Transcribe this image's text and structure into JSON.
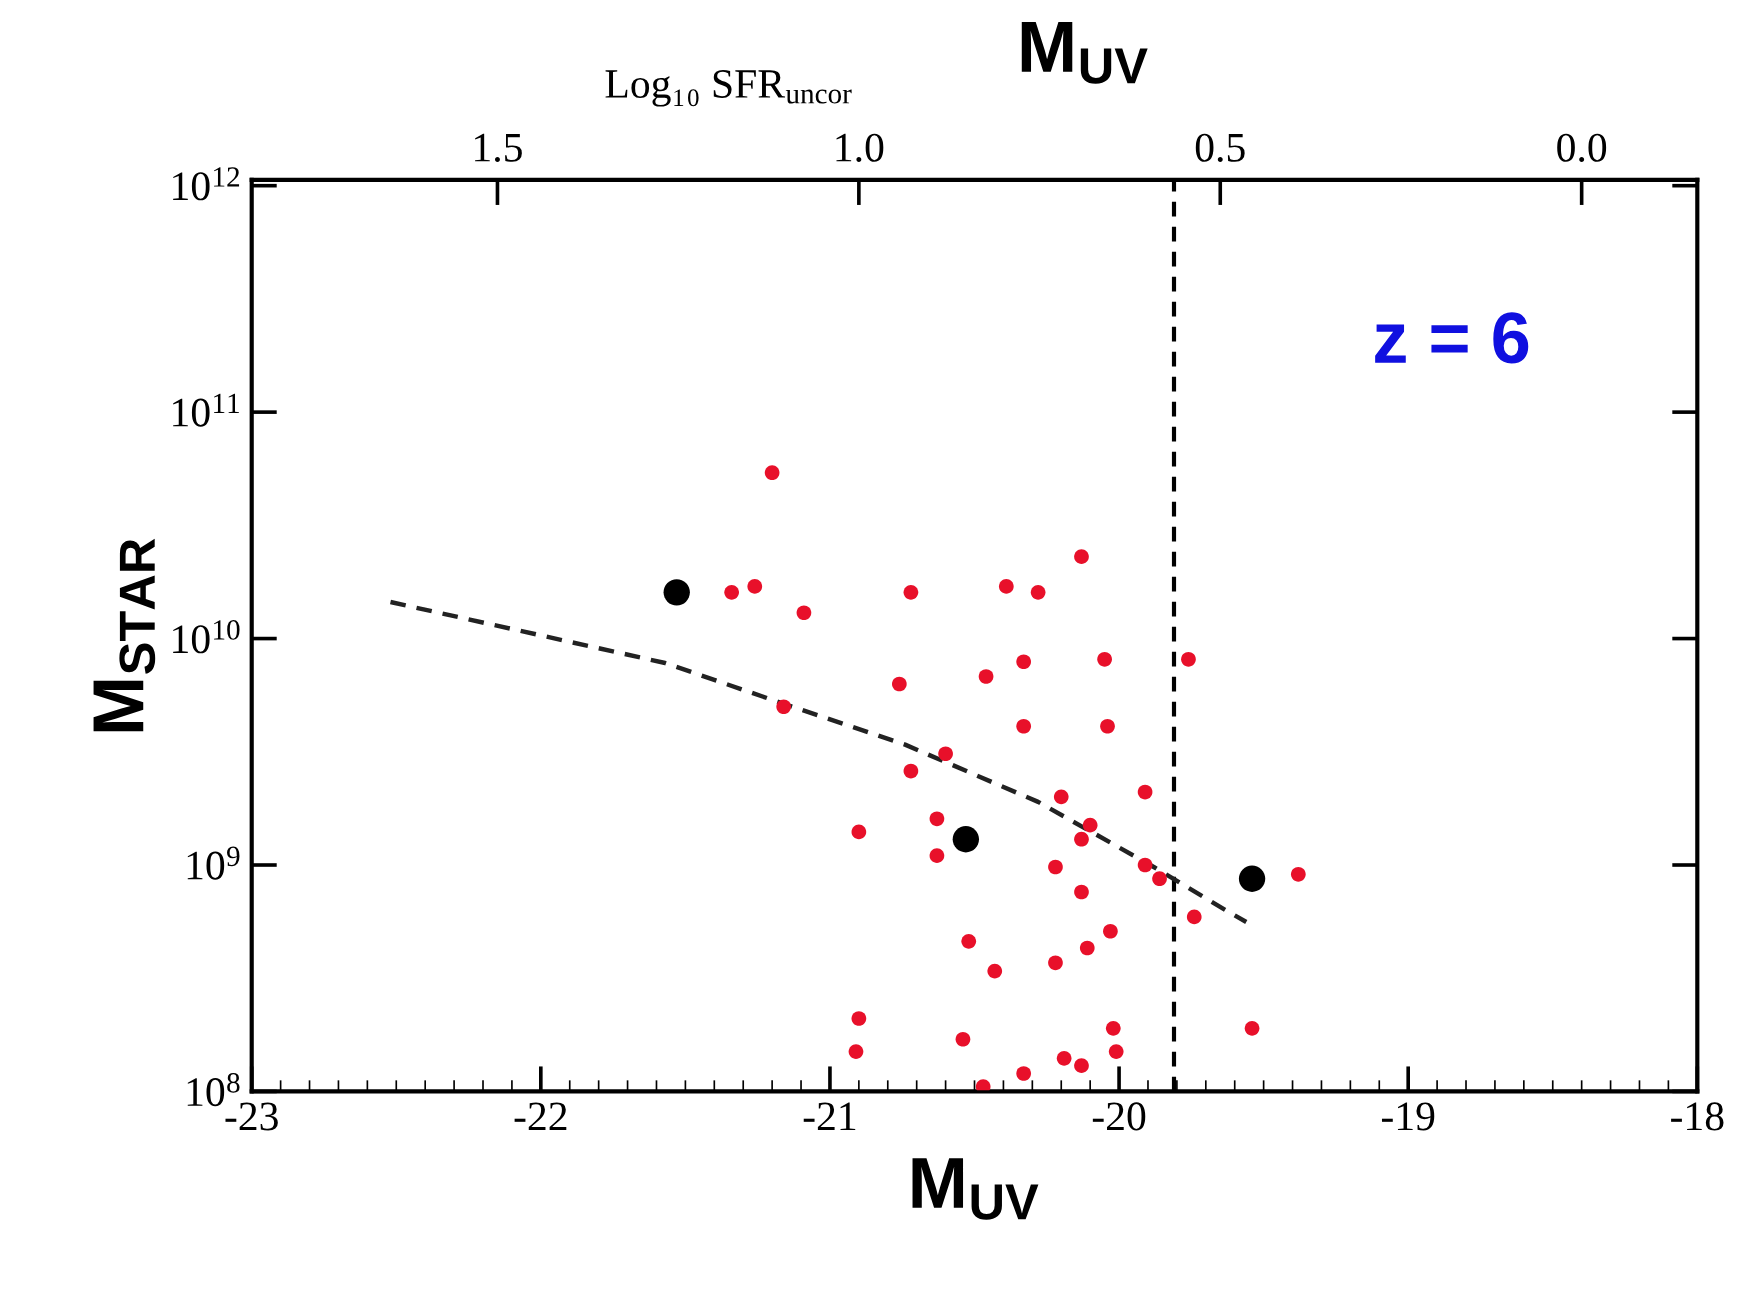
{
  "chart_data": {
    "type": "scatter",
    "title": "M$_{UV}$",
    "xlabel": "M$_{UV}$",
    "ylabel": "M$_{STAR}$",
    "x2label": "Log₁₀ SFR$_{uncor}$",
    "log": "y",
    "grid": false,
    "legend": false,
    "marker": "circle",
    "xlim": [
      -23,
      -18
    ],
    "xticks": [
      -23,
      -22,
      -21,
      -20,
      -19,
      -18
    ],
    "ylim": [
      100000000.0,
      1060000000000.0
    ],
    "yticks": [
      {
        "value": 100000000.0,
        "label": "10$^{8}$"
      },
      {
        "value": 1000000000.0,
        "label": "10$^{9}$"
      },
      {
        "value": 10000000000.0,
        "label": "10$^{10}$"
      },
      {
        "value": 100000000000.0,
        "label": "10$^{11}$"
      },
      {
        "value": 1000000000000.0,
        "label": "10$^{12}$"
      }
    ],
    "x2lim": [
      1.84,
      -0.16
    ],
    "x2ticks": [
      {
        "value": 1.5,
        "label": "1.5"
      },
      {
        "value": 1.0,
        "label": "1.0"
      },
      {
        "value": 0.5,
        "label": "0.5"
      },
      {
        "value": 0.0,
        "label": "0.0"
      }
    ],
    "ref_lines": [
      {
        "axis": "x",
        "value": -19.81,
        "color": "#000000",
        "line_style": "dashed"
      }
    ],
    "annotations": [
      {
        "text": "z = 6"
      }
    ],
    "series": [
      {
        "color": "#e8102a",
        "x": [
          -21.2,
          -21.34,
          -21.26,
          -21.09,
          -20.72,
          -20.39,
          -20.28,
          -20.33,
          -20.76,
          -20.46,
          -21.16,
          -20.33,
          -20.6,
          -20.72,
          -20.9,
          -20.63,
          -20.63,
          -20.52,
          -20.43,
          -20.9,
          -20.91,
          -20.54,
          -20.47,
          -20.33,
          -20.13,
          -20.05,
          -19.76,
          -20.04,
          -19.91,
          -20.2,
          -20.1,
          -20.13,
          -19.91,
          -19.86,
          -20.22,
          -20.13,
          -19.38,
          -19.74,
          -20.03,
          -20.11,
          -20.22,
          -20.02,
          -20.01,
          -19.54,
          -20.19,
          -20.13
        ],
        "values": [
          54000000000.0,
          16000000000.0,
          17000000000.0,
          13000000000.0,
          16000000000.0,
          17000000000.0,
          16000000000.0,
          7900000000.0,
          6300000000.0,
          6800000000.0,
          5000000000.0,
          4100000000.0,
          3100000000.0,
          2600000000.0,
          1400000000.0,
          1600000000.0,
          1100000000.0,
          460000000.0,
          340000000.0,
          210000000.0,
          150000000.0,
          170000000.0,
          105000000.0,
          120000000.0,
          23000000000.0,
          8100000000.0,
          8100000000.0,
          4100000000.0,
          2100000000.0,
          2000000000.0,
          1500000000.0,
          1300000000.0,
          1000000000.0,
          870000000.0,
          980000000.0,
          760000000.0,
          910000000.0,
          590000000.0,
          510000000.0,
          430000000.0,
          370000000.0,
          190000000.0,
          150000000.0,
          190000000.0,
          140000000.0,
          130000000.0
        ]
      },
      {
        "color": "#000000",
        "x": [
          -21.53,
          -20.53,
          -19.54
        ],
        "values": [
          16000000000.0,
          1300000000.0,
          870000000.0
        ]
      },
      {
        "type": "line",
        "color": "#222222",
        "marker": "none",
        "line_style": "dashed",
        "x": [
          -22.52,
          -21.57,
          -21.15,
          -20.74,
          -20.28,
          -19.88,
          -19.63,
          -19.56
        ],
        "values": [
          14500000000.0,
          7800000000.0,
          5100000000.0,
          3400000000.0,
          1900000000.0,
          980000000.0,
          630000000.0,
          560000000.0
        ]
      }
    ]
  }
}
